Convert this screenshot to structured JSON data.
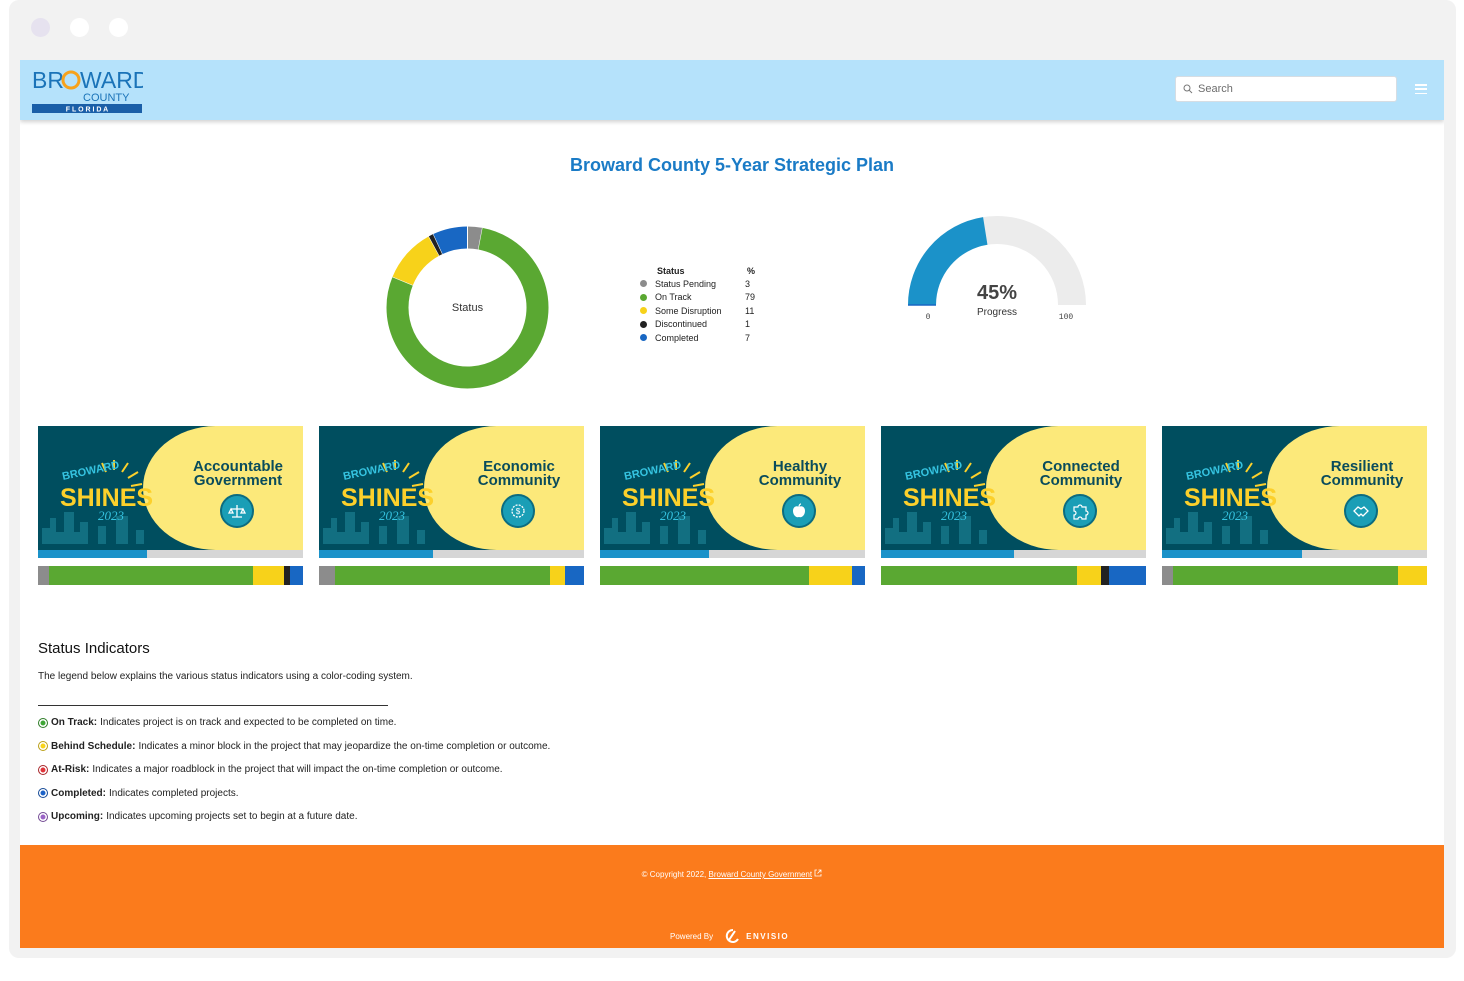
{
  "window": {
    "dots": [
      "close",
      "minimize",
      "maximize"
    ]
  },
  "header": {
    "logo": {
      "line1_a": "BR",
      "line1_b": "WARD",
      "line2": "COUNTY",
      "line3": "F L O R I D A"
    },
    "search_placeholder": "Search",
    "menu_icon": "hamburger-icon"
  },
  "page_title": "Broward County 5-Year Strategic Plan",
  "status_chart": {
    "chart_data": {
      "type": "pie",
      "title": "Status",
      "legend_header": [
        "Status",
        "%"
      ],
      "series": [
        {
          "name": "Status Pending",
          "value": 3,
          "color": "#8c8c8c"
        },
        {
          "name": "On Track",
          "value": 79,
          "color": "#5aa832"
        },
        {
          "name": "Some Disruption",
          "value": 11,
          "color": "#f7d21a"
        },
        {
          "name": "Discontinued",
          "value": 1,
          "color": "#222222"
        },
        {
          "name": "Completed",
          "value": 7,
          "color": "#1867c3"
        }
      ]
    }
  },
  "progress_gauge": {
    "value": 45,
    "value_label": "45%",
    "label": "Progress",
    "min_label": "0",
    "max_label": "100",
    "fill_color": "#1b92c9",
    "track_color": "#ececec"
  },
  "tiles": [
    {
      "title_line1": "Accountable",
      "title_line2": "Government",
      "icon": "scales-icon",
      "progress": 0.41,
      "status": [
        0.04,
        0.77,
        0.12,
        0.02,
        0.05
      ]
    },
    {
      "title_line1": "Economic",
      "title_line2": "Community",
      "icon": "money-gear-icon",
      "progress": 0.43,
      "status": [
        0.06,
        0.81,
        0.06,
        0.0,
        0.07
      ]
    },
    {
      "title_line1": "Healthy",
      "title_line2": "Community",
      "icon": "apple-icon",
      "progress": 0.41,
      "status": [
        0.0,
        0.79,
        0.16,
        0.0,
        0.05
      ]
    },
    {
      "title_line1": "Connected",
      "title_line2": "Community",
      "icon": "puzzle-icon",
      "progress": 0.5,
      "status": [
        0.0,
        0.74,
        0.09,
        0.03,
        0.14
      ]
    },
    {
      "title_line1": "Resilient",
      "title_line2": "Community",
      "icon": "handshake-icon",
      "progress": 0.53,
      "status": [
        0.04,
        0.85,
        0.11,
        0.0,
        0.0
      ]
    }
  ],
  "tile_brand": {
    "top": "BROWARD",
    "main": "SHINES",
    "year": "2023"
  },
  "status_indicators": {
    "title": "Status Indicators",
    "description": "The legend below explains the various status indicators using a color-coding system.",
    "items": [
      {
        "label": "On Track:",
        "text": "Indicates project is on track and expected to be completed on time.",
        "color": "#3ea635"
      },
      {
        "label": "Behind Schedule:",
        "text": "Indicates a minor block in the project that may jeopardize the on-time completion or outcome.",
        "color": "#f8d41c"
      },
      {
        "label": "At-Risk:",
        "text": "Indicates a major roadblock in the project that will impact the on-time completion or outcome.",
        "color": "#e0343a"
      },
      {
        "label": "Completed:",
        "text": "Indicates completed projects.",
        "color": "#1c62c8"
      },
      {
        "label": "Upcoming:",
        "text": "Indicates upcoming projects set to begin at a future date.",
        "color": "#9a63c6"
      }
    ]
  },
  "footer": {
    "copyright_prefix": "© Copyright 2022,",
    "copyright_link": "Broward County Government",
    "powered_by": "Powered By",
    "brand": "ENVISIO",
    "color": "#fb7b1c"
  }
}
